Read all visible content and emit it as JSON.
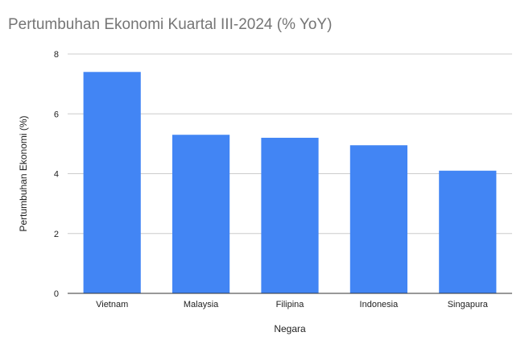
{
  "chart_data": {
    "type": "bar",
    "title": "Pertumbuhan Ekonomi Kuartal III-2024 (% YoY)",
    "xlabel": "Negara",
    "ylabel": "Pertumbuhan Ekonomi (%)",
    "categories": [
      "Vietnam",
      "Malaysia",
      "Filipina",
      "Indonesia",
      "Singapura"
    ],
    "series": [
      {
        "values": [
          7.4,
          5.3,
          5.2,
          4.95,
          4.1
        ]
      }
    ],
    "ylim": [
      0,
      8
    ],
    "yticks": [
      "0",
      "2",
      "4",
      "6",
      "8"
    ],
    "grid": true,
    "legend": "none",
    "colors": {
      "bar": "#4285f4",
      "grid": "#cccccc",
      "baseline": "#333333",
      "title": "#757575"
    }
  }
}
